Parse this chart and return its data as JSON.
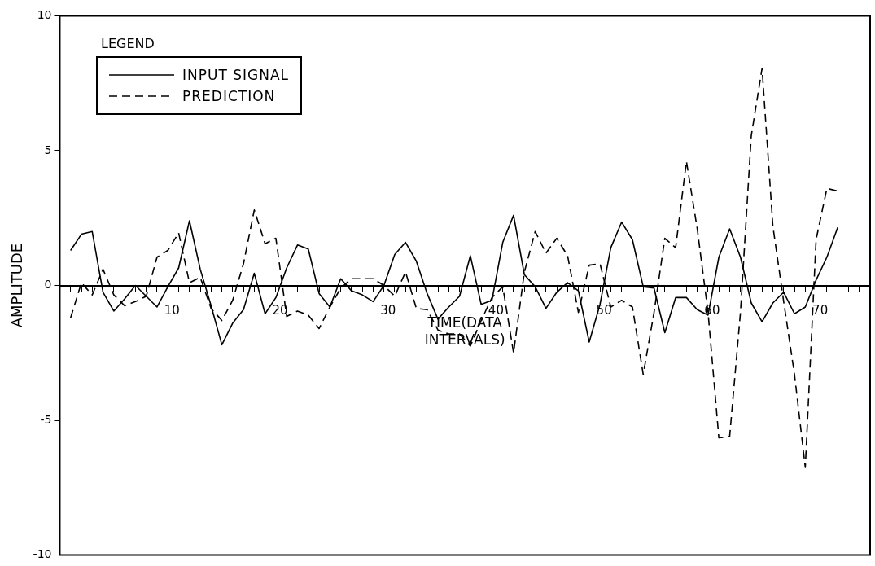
{
  "chart_data": {
    "type": "line",
    "xlabel": "TIME(DATA\nINTERVALS)",
    "ylabel": "AMPLITUDE",
    "legend_title": "LEGEND",
    "legend": "top left",
    "grid": false,
    "marker": "none",
    "x": [
      1,
      2,
      3,
      4,
      5,
      6,
      7,
      8,
      9,
      10,
      11,
      12,
      13,
      14,
      15,
      16,
      17,
      18,
      19,
      20,
      21,
      22,
      23,
      24,
      25,
      26,
      27,
      28,
      29,
      30,
      31,
      32,
      33,
      34,
      35,
      36,
      37,
      38,
      39,
      40,
      41,
      42,
      43,
      44,
      45,
      46,
      47,
      48,
      49,
      50,
      51,
      52,
      53,
      54,
      55,
      56,
      57,
      58,
      59,
      60,
      61,
      62,
      63,
      64,
      65,
      66,
      67,
      68,
      69,
      70,
      71,
      72
    ],
    "xlim": [
      0,
      75
    ],
    "xticks": [
      {
        "value": 1,
        "label": null
      },
      {
        "value": 2,
        "label": null
      },
      {
        "value": 3,
        "label": null
      },
      {
        "value": 4,
        "label": null
      },
      {
        "value": 5,
        "label": null
      },
      {
        "value": 6,
        "label": null
      },
      {
        "value": 7,
        "label": null
      },
      {
        "value": 8,
        "label": null
      },
      {
        "value": 9,
        "label": null
      },
      10,
      {
        "value": 11,
        "label": null
      },
      {
        "value": 12,
        "label": null
      },
      {
        "value": 13,
        "label": null
      },
      {
        "value": 14,
        "label": null
      },
      {
        "value": 15,
        "label": null
      },
      {
        "value": 16,
        "label": null
      },
      {
        "value": 17,
        "label": null
      },
      {
        "value": 18,
        "label": null
      },
      {
        "value": 19,
        "label": null
      },
      20,
      {
        "value": 21,
        "label": null
      },
      {
        "value": 22,
        "label": null
      },
      {
        "value": 23,
        "label": null
      },
      {
        "value": 24,
        "label": null
      },
      {
        "value": 25,
        "label": null
      },
      {
        "value": 26,
        "label": null
      },
      {
        "value": 27,
        "label": null
      },
      {
        "value": 28,
        "label": null
      },
      {
        "value": 29,
        "label": null
      },
      30,
      {
        "value": 31,
        "label": null
      },
      {
        "value": 32,
        "label": null
      },
      {
        "value": 33,
        "label": null
      },
      {
        "value": 34,
        "label": null
      },
      {
        "value": 35,
        "label": null
      },
      {
        "value": 36,
        "label": null
      },
      {
        "value": 37,
        "label": null
      },
      {
        "value": 38,
        "label": null
      },
      {
        "value": 39,
        "label": null
      },
      40,
      {
        "value": 41,
        "label": null
      },
      {
        "value": 42,
        "label": null
      },
      {
        "value": 43,
        "label": null
      },
      {
        "value": 44,
        "label": null
      },
      {
        "value": 45,
        "label": null
      },
      {
        "value": 46,
        "label": null
      },
      {
        "value": 47,
        "label": null
      },
      {
        "value": 48,
        "label": null
      },
      {
        "value": 49,
        "label": null
      },
      50,
      {
        "value": 51,
        "label": null
      },
      {
        "value": 52,
        "label": null
      },
      {
        "value": 53,
        "label": null
      },
      {
        "value": 54,
        "label": null
      },
      {
        "value": 55,
        "label": null
      },
      {
        "value": 56,
        "label": null
      },
      {
        "value": 57,
        "label": null
      },
      {
        "value": 58,
        "label": null
      },
      {
        "value": 59,
        "label": null
      },
      60,
      {
        "value": 61,
        "label": null
      },
      {
        "value": 62,
        "label": null
      },
      {
        "value": 63,
        "label": null
      },
      {
        "value": 64,
        "label": null
      },
      {
        "value": 65,
        "label": null
      },
      {
        "value": 66,
        "label": null
      },
      {
        "value": 67,
        "label": null
      },
      {
        "value": 68,
        "label": null
      },
      {
        "value": 69,
        "label": null
      },
      70,
      {
        "value": 71,
        "label": null
      },
      {
        "value": 72,
        "label": null
      },
      {
        "value": 73,
        "label": null
      },
      {
        "value": 74,
        "label": null
      }
    ],
    "ylim": [
      -10,
      10
    ],
    "yticks": [
      -10,
      -5,
      0,
      5,
      10
    ],
    "series": [
      {
        "name": "INPUT SIGNAL",
        "color": "#000000",
        "line_style": "solid",
        "values": [
          1.3,
          1.9,
          2.0,
          -0.25,
          -0.95,
          -0.5,
          0,
          -0.4,
          -0.8,
          -0.05,
          0.65,
          2.4,
          0.6,
          -0.75,
          -2.2,
          -1.4,
          -0.9,
          0.45,
          -1.05,
          -0.45,
          0.65,
          1.5,
          1.35,
          -0.3,
          -0.8,
          0.25,
          -0.2,
          -0.35,
          -0.6,
          0,
          1.15,
          1.6,
          0.9,
          -0.3,
          -1.25,
          -0.8,
          -0.4,
          1.1,
          -0.7,
          -0.55,
          1.6,
          2.6,
          0.4,
          -0.05,
          -0.85,
          -0.25,
          0.1,
          -0.2,
          -2.1,
          -0.7,
          1.4,
          2.35,
          1.7,
          -0.05,
          -0.1,
          -1.75,
          -0.45,
          -0.45,
          -0.9,
          -1.1,
          1.05,
          2.1,
          1.05,
          -0.65,
          -1.35,
          -0.65,
          -0.25,
          -1.05,
          -0.8,
          0.2,
          1.05,
          2.15
        ]
      },
      {
        "name": "PREDICTION",
        "color": "#000000",
        "line_style": "dashed",
        "values": [
          -1.2,
          0.1,
          -0.35,
          0.6,
          -0.35,
          -0.75,
          -0.6,
          -0.4,
          1.05,
          1.3,
          1.95,
          0.1,
          0.3,
          -0.85,
          -1.3,
          -0.55,
          0.8,
          2.8,
          1.55,
          1.75,
          -1.15,
          -0.95,
          -1.1,
          -1.6,
          -0.8,
          -0.1,
          0.25,
          0.25,
          0.25,
          0,
          -0.4,
          0.5,
          -0.85,
          -0.9,
          -1.65,
          -1.8,
          -1.8,
          -2.25,
          -1.3,
          -0.45,
          -0.05,
          -2.5,
          0.5,
          2.0,
          1.2,
          1.75,
          1.1,
          -1.0,
          0.75,
          0.8,
          -0.8,
          -0.55,
          -0.8,
          -3.3,
          -1.0,
          1.75,
          1.4,
          4.6,
          2.1,
          -1.0,
          -5.65,
          -5.6,
          -1.0,
          5.55,
          8.05,
          2.2,
          -0.6,
          -3.3,
          -6.75,
          1.7,
          3.6,
          3.5
        ]
      }
    ]
  }
}
